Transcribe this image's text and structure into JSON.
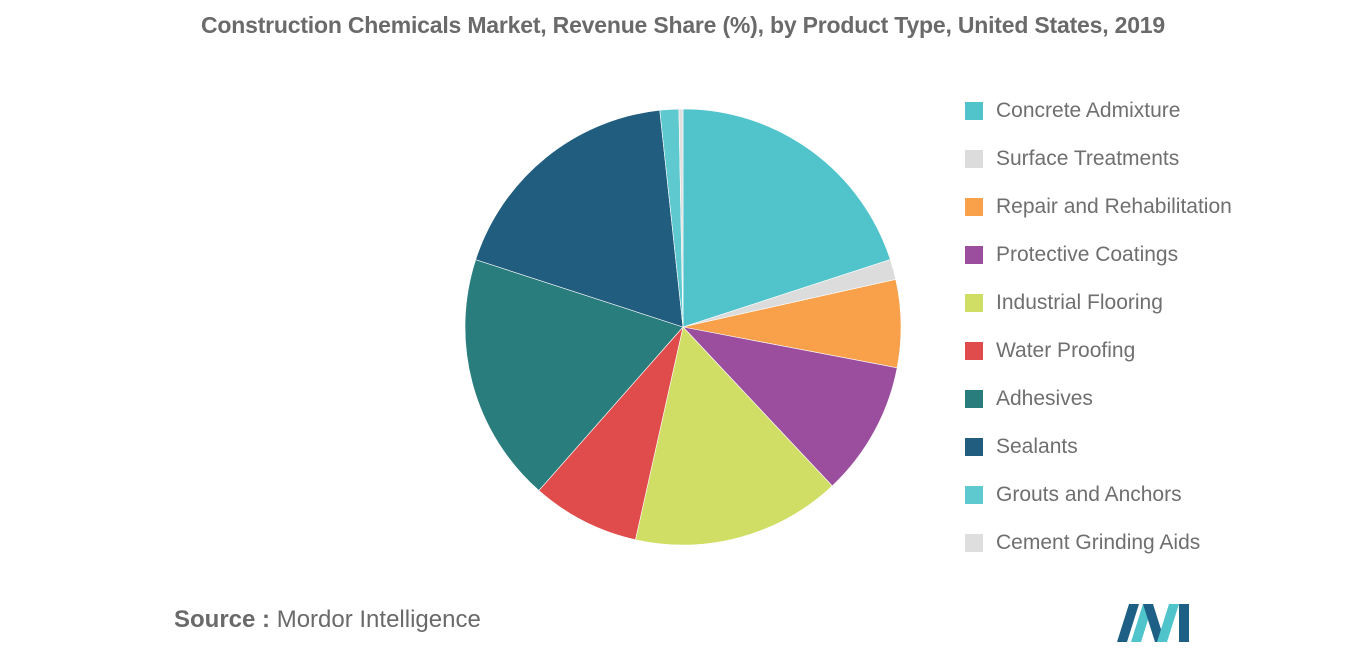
{
  "title": "Construction Chemicals Market, Revenue Share (%), by Product Type, United States, 2019",
  "source": {
    "label": "Source :",
    "text": "Mordor Intelligence"
  },
  "logo": {
    "icon": "mordor-intelligence-logo-icon",
    "colors": [
      "#1e5f86",
      "#4fc4cb"
    ]
  },
  "chart_data": {
    "type": "pie",
    "title": "Construction Chemicals Market, Revenue Share (%), by Product Type, United States, 2019",
    "start_angle_deg": 0,
    "direction": "clockwise",
    "legend_position": "right",
    "series": [
      {
        "name": "Concrete Admixture",
        "value": 20.0,
        "color": "#51c4cb"
      },
      {
        "name": "Surface Treatments",
        "value": 1.5,
        "color": "#dcdcdc"
      },
      {
        "name": "Repair and Rehabilitation",
        "value": 6.5,
        "color": "#f9a04a"
      },
      {
        "name": "Protective Coatings",
        "value": 10.0,
        "color": "#9c4e9e"
      },
      {
        "name": "Industrial Flooring",
        "value": 15.5,
        "color": "#d0de65"
      },
      {
        "name": "Water Proofing",
        "value": 8.0,
        "color": "#e04b4b"
      },
      {
        "name": "Adhesives",
        "value": 18.5,
        "color": "#2a7d7d"
      },
      {
        "name": "Sealants",
        "value": 18.3,
        "color": "#215d7f"
      },
      {
        "name": "Grouts and Anchors",
        "value": 1.4,
        "color": "#5ec9ce"
      },
      {
        "name": "Cement Grinding Aids",
        "value": 0.3,
        "color": "#dedede"
      }
    ]
  }
}
